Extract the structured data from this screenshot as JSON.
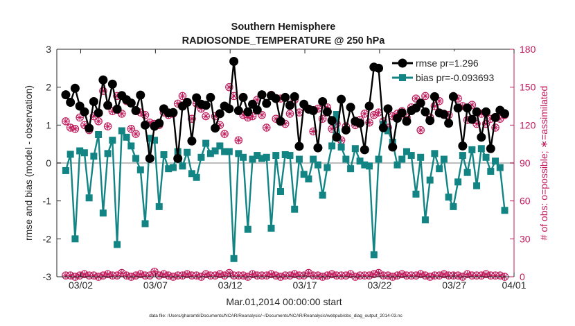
{
  "chart_data": {
    "type": "line",
    "title": "Southern Hemisphere",
    "subtitle": "RADIOSONDE_TEMPERATURE @ 250 hPa",
    "xlabel": "Mar.01,2014 00:00:00 start",
    "ylabel": "rmse and bias (model - observation)",
    "ylabel_right": "# of obs: o=possible; ∗=assimilated",
    "footer": "data file: /Users/gharamti/Documents/NCAR/Reanalysis/~/Documents/NCAR/Reanalysis/webpub/obs_diag_output_2014-03.nc",
    "xlim": [
      0.4,
      31.0
    ],
    "ylim": [
      -3,
      3
    ],
    "ylim_right": [
      0,
      180
    ],
    "x_ticks": [
      2,
      7,
      12,
      17,
      22,
      27,
      32
    ],
    "x_tick_labels": [
      "03/02",
      "03/07",
      "03/12",
      "03/17",
      "03/22",
      "03/27",
      "04/01"
    ],
    "y_ticks": [
      -3,
      -2,
      -1,
      0,
      1,
      2,
      3
    ],
    "y_ticks_right": [
      0,
      30,
      60,
      90,
      120,
      150,
      180
    ],
    "zero_line": 0,
    "colors": {
      "rmse": "#000000",
      "bias": "#138484",
      "obs": "#c0185a",
      "zero": "#bdbdbd",
      "axis": "#262626"
    },
    "series": [
      {
        "name": "rmse",
        "legend": "rmse pr=1.296",
        "values": [
          1.8,
          1.6,
          1.97,
          1.5,
          1.35,
          0.92,
          1.62,
          1.32,
          2.19,
          1.52,
          2.08,
          1.42,
          1.78,
          1.67,
          1.58,
          1.38,
          1.79,
          1.0,
          0.12,
          0.97,
          1.05,
          1.43,
          1.32,
          1.33,
          0.12,
          1.5,
          1.6,
          0.58,
          1.72,
          1.55,
          1.52,
          1.73,
          0.92,
          1.3,
          1.5,
          1.43,
          2.68,
          1.38,
          1.73,
          1.35,
          1.55,
          1.4,
          1.8,
          1.57,
          1.78,
          1.7,
          1.1,
          1.73,
          1.52,
          1.75,
          0.44,
          1.55,
          1.42,
          1.38,
          0.4,
          1.62,
          1.35,
          1.12,
          0.68,
          1.68,
          0.87,
          1.47,
          1.1,
          1.05,
          0.35,
          1.5,
          2.53,
          2.5,
          0.93,
          1.43,
          0.42,
          1.18,
          1.32,
          1.1,
          1.38,
          1.45,
          1.58,
          1.35,
          1.12,
          1.75,
          1.32,
          1.28,
          1.05,
          1.75,
          1.45,
          0.45,
          1.45,
          1.15,
          1.35,
          0.68,
          1.35,
          0.38,
          1.2,
          1.39,
          1.3
        ]
      },
      {
        "name": "bias",
        "legend": "bias pr=-0.093693",
        "values": [
          -0.2,
          0.23,
          -2.0,
          0.32,
          0.27,
          -0.92,
          0.18,
          0.75,
          -1.32,
          0.25,
          0.6,
          -2.15,
          0.85,
          0.68,
          0.45,
          0.12,
          -0.18,
          -1.6,
          0.65,
          0.6,
          -1.15,
          0.22,
          -0.15,
          -0.12,
          0.3,
          -0.08,
          0.28,
          -0.28,
          -0.38,
          0.15,
          0.52,
          0.25,
          0.32,
          0.45,
          0.3,
          0.3,
          -2.52,
          0.25,
          0.15,
          -1.75,
          0.1,
          0.2,
          0.12,
          0.15,
          -1.72,
          0.2,
          -0.75,
          0.22,
          0.2,
          -1.22,
          0.1,
          -0.3,
          -0.42,
          0.1,
          -0.05,
          -0.85,
          -0.12,
          0.45,
          1.28,
          0.42,
          0.1,
          -0.15,
          0.38,
          0.05,
          -0.05,
          -0.08,
          -2.42,
          0.1,
          1.02,
          0.85,
          0.55,
          -0.05,
          0.1,
          0.3,
          0.2,
          -0.82,
          0.15,
          -1.5,
          -0.45,
          0.25,
          -0.15,
          0.1,
          -0.9,
          -1.15,
          -0.5,
          0.2,
          -0.25,
          0.35,
          -0.6,
          0.38,
          0.15,
          -0.22,
          0.05,
          -0.12,
          -1.25
        ]
      },
      {
        "name": "# of obs possible",
        "axis": "right",
        "values": [
          123,
          118,
          117,
          126,
          120,
          116,
          127,
          123,
          147,
          119,
          131,
          143,
          129,
          139,
          117,
          113,
          130,
          128,
          122,
          121,
          120,
          130,
          128,
          129,
          137,
          143,
          138,
          125,
          137,
          133,
          127,
          142,
          127,
          120,
          113,
          150,
          143,
          108,
          128,
          126,
          127,
          140,
          128,
          118,
          144,
          125,
          141,
          121,
          129,
          140,
          130,
          136,
          133,
          115,
          133,
          125,
          134,
          117,
          121,
          108,
          119,
          134,
          120,
          124,
          129,
          122,
          128,
          130,
          123,
          118,
          127,
          129,
          131,
          126,
          134,
          141,
          116,
          143,
          126,
          135,
          139,
          129,
          128,
          143,
          141,
          135,
          124,
          136,
          121,
          129,
          121,
          125,
          118,
          125,
          128
        ]
      },
      {
        "name": "# of obs assimilated",
        "axis": "right",
        "values": [
          121,
          116,
          116,
          124,
          118,
          115,
          125,
          121,
          146,
          117,
          129,
          141,
          127,
          137,
          115,
          112,
          128,
          126,
          120,
          119,
          118,
          128,
          126,
          127,
          135,
          141,
          136,
          123,
          135,
          131,
          125,
          140,
          125,
          118,
          112,
          148,
          141,
          107,
          126,
          124,
          125,
          138,
          126,
          116,
          142,
          123,
          139,
          119,
          127,
          138,
          128,
          134,
          131,
          113,
          131,
          123,
          132,
          115,
          119,
          107,
          117,
          132,
          118,
          122,
          127,
          120,
          126,
          128,
          121,
          116,
          125,
          127,
          129,
          124,
          132,
          139,
          114,
          141,
          124,
          133,
          137,
          127,
          126,
          141,
          139,
          133,
          122,
          134,
          119,
          127,
          119,
          123,
          116,
          123,
          126
        ]
      },
      {
        "name": "# of obs possible (bottom level)",
        "axis": "right",
        "values": [
          1,
          1,
          0,
          1,
          2,
          1,
          1,
          0,
          1,
          2,
          1,
          1,
          3,
          1,
          0,
          1,
          2,
          1,
          1,
          4,
          1,
          2,
          1,
          0,
          1,
          1,
          2,
          1,
          1,
          0,
          2,
          1,
          1,
          2,
          1,
          3,
          1,
          1,
          1,
          0,
          2,
          1,
          1,
          1,
          2,
          1,
          0,
          1,
          1,
          2,
          1,
          1,
          3,
          1,
          1,
          0,
          1,
          2,
          1,
          1,
          1,
          2,
          0,
          1,
          1,
          1,
          2,
          3,
          1,
          1,
          0,
          1,
          2,
          1,
          1,
          1,
          2,
          1,
          0,
          1,
          1,
          2,
          1,
          1,
          1,
          0,
          2,
          1,
          1,
          1,
          2,
          1,
          1,
          1,
          0
        ]
      }
    ]
  }
}
